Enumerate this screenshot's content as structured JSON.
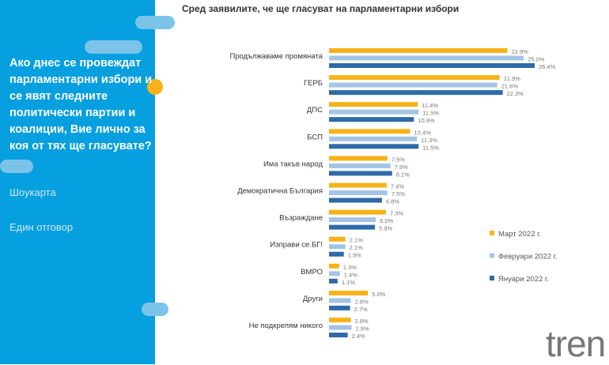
{
  "panel": {
    "question": "Ако днес се провеждат парламентарни избори и се явят следните политически партии и коалиции, Вие лично за коя от тях ще гласувате?",
    "note1": "Шоукарта",
    "note2": "Един отговор"
  },
  "logo": "tren",
  "chart_data": {
    "type": "bar",
    "orientation": "horizontal",
    "title": "Сред заявилите, че ще гласуват на парламентарни избори",
    "categories": [
      "Продължаваме промяната",
      "ГЕРБ",
      "ДПС",
      "БСП",
      "Има такъв народ",
      "Демократична България",
      "Възраждане",
      "Изправи се.БГ!",
      "ВМРО",
      "Други",
      "Не подкрепям никого"
    ],
    "series": [
      {
        "name": "Март 2022 г.",
        "color": "#f7b21a",
        "values": [
          22.9,
          21.9,
          11.4,
          10.4,
          7.5,
          7.4,
          7.3,
          2.1,
          1.3,
          5.0,
          2.8
        ]
      },
      {
        "name": "Февруари 2022 г.",
        "color": "#a4c4e4",
        "values": [
          25.0,
          21.6,
          11.5,
          11.3,
          7.9,
          7.5,
          6.0,
          2.1,
          1.4,
          2.8,
          2.9
        ]
      },
      {
        "name": "Януари 2022 г.",
        "color": "#2f6aa8",
        "values": [
          26.4,
          22.3,
          10.9,
          11.5,
          8.1,
          6.8,
          5.9,
          1.9,
          1.1,
          2.7,
          2.4
        ]
      }
    ],
    "value_suffix": "%",
    "legend": "right",
    "grid": false
  }
}
